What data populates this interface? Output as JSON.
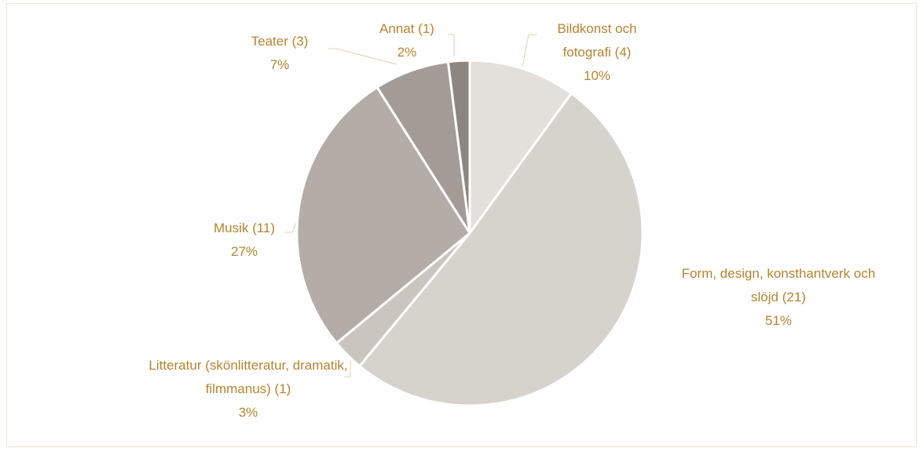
{
  "chart_data": {
    "type": "pie",
    "categories": [
      "Bildkonst och fotografi (4)",
      "Form, design, konsthantverk och slöjd (21)",
      "Litteratur (skönlitteratur, dramatik, filmmanus) (1)",
      "Musik (11)",
      "Teater (3)",
      "Annat (1)"
    ],
    "values": [
      10,
      51,
      3,
      27,
      7,
      2
    ],
    "value_labels": [
      "10%",
      "51%",
      "3%",
      "27%",
      "7%",
      "2%"
    ],
    "colors": [
      "#e3dfdb",
      "#d6d3cc",
      "#cac5be",
      "#b4ada7",
      "#a39c96",
      "#8d8680"
    ]
  }
}
